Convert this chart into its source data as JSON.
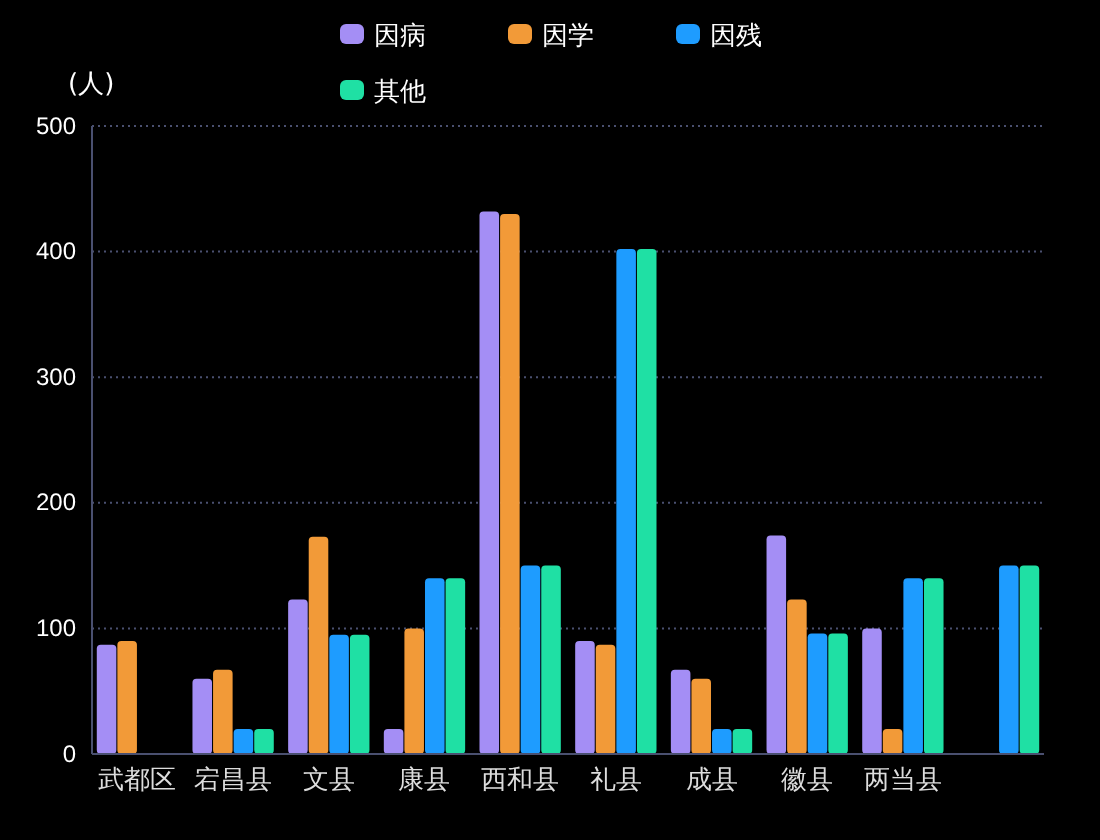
{
  "chart_data": {
    "type": "bar",
    "ylabel": "(人)",
    "categories": [
      "武都区",
      "宕昌县",
      "文县",
      "康县",
      "西和县",
      "礼县",
      "成县",
      "徽县",
      "两当县",
      null
    ],
    "series": [
      {
        "name": "因病",
        "color": "#a48ef5",
        "values": [
          87,
          60,
          123,
          20,
          432,
          90,
          67,
          174,
          100,
          null
        ]
      },
      {
        "name": "因学",
        "color": "#f29a38",
        "values": [
          90,
          67,
          173,
          100,
          430,
          87,
          60,
          123,
          20,
          null
        ]
      },
      {
        "name": "因残",
        "color": "#1e9cff",
        "values": [
          null,
          20,
          95,
          140,
          150,
          402,
          20,
          96,
          140,
          150
        ]
      },
      {
        "name": "其他",
        "color": "#1fe0a4",
        "values": [
          null,
          20,
          95,
          140,
          150,
          402,
          20,
          96,
          140,
          150
        ]
      }
    ],
    "ylim": [
      0,
      500
    ],
    "yticks": [
      0,
      100,
      200,
      300,
      400,
      500
    ],
    "grid": "y",
    "legend": "top"
  }
}
